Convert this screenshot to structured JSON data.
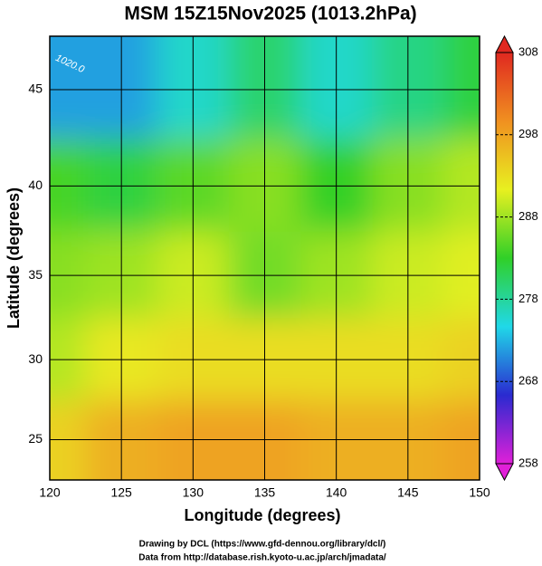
{
  "chart_data": {
    "type": "heatmap",
    "title": "MSM 15Z15Nov2025 (1013.2hPa)",
    "x_label": "Longitude (degrees)",
    "y_label": "Latitude  (degrees)",
    "credits": [
      "Drawing by DCL (https://www.gfd-dennou.org/library/dcl/)",
      "Data from http://database.rish.kyoto-u.ac.jp/arch/jmadata/"
    ],
    "annotations": [
      "1020.0"
    ],
    "x": [
      120,
      125,
      130,
      135,
      140,
      145,
      150
    ],
    "y": [
      45,
      40,
      35,
      30,
      25
    ],
    "z": [
      [
        272,
        272,
        276,
        280,
        276,
        279,
        282
      ],
      [
        284,
        282,
        285,
        287,
        283,
        287,
        289
      ],
      [
        287,
        288,
        290,
        286,
        288,
        290,
        291
      ],
      [
        289,
        292,
        293,
        293,
        293,
        293,
        294
      ],
      [
        294,
        297,
        298,
        298,
        297,
        297,
        298
      ]
    ],
    "xlim": [
      120,
      150
    ],
    "ylim": [
      22.4,
      47.6
    ],
    "xticks": [
      120,
      125,
      130,
      135,
      140,
      145,
      150
    ],
    "yticks": [
      25,
      30,
      35,
      40,
      45
    ],
    "zlim": [
      258,
      308
    ],
    "cticks": [
      258,
      268,
      278,
      288,
      298,
      308
    ],
    "colormap": [
      "#e020d8",
      "#2a2ad0",
      "#20d8e8",
      "#30d028",
      "#e8f020",
      "#f09020",
      "#e02820"
    ],
    "grid": true
  }
}
